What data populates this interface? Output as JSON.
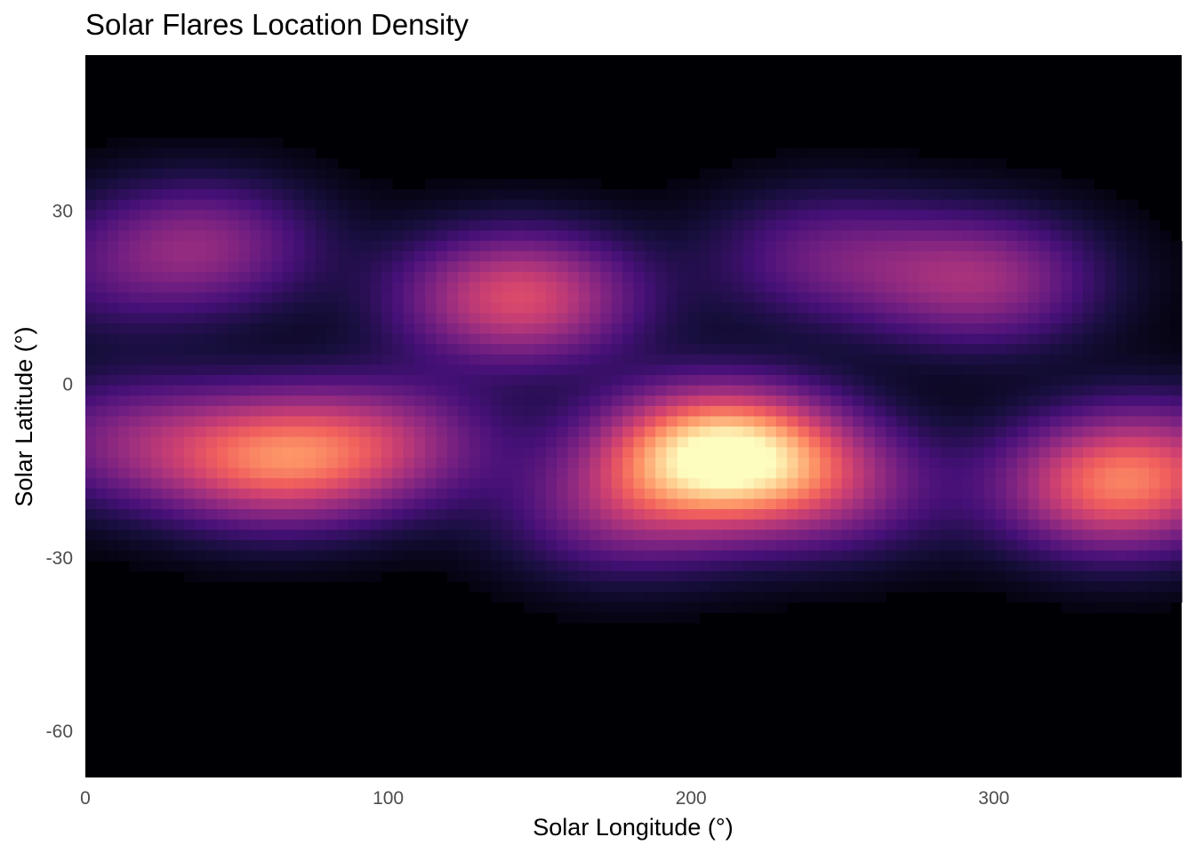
{
  "chart_data": {
    "type": "heatmap",
    "title": "Solar Flares Location Density",
    "xlabel": "Solar Longitude (°)",
    "ylabel": "Solar Latitude (°)",
    "xlim": [
      0,
      362
    ],
    "ylim": [
      -68,
      57
    ],
    "x_ticks": [
      0,
      100,
      200,
      300
    ],
    "y_ticks": [
      -60,
      -30,
      0,
      30
    ],
    "colormap": "magma",
    "colormap_stops": [
      "#000004",
      "#180f3e",
      "#451077",
      "#721f81",
      "#9f2f7f",
      "#cd4071",
      "#f1605d",
      "#fd9567",
      "#feca8d",
      "#fcfdbf"
    ],
    "grid": false,
    "legend": "none",
    "density_peaks": [
      {
        "lon": 210,
        "lat": -12,
        "density": 1.0
      },
      {
        "lon": 63,
        "lat": -13,
        "density": 0.58
      },
      {
        "lon": 143,
        "lat": 15,
        "density": 0.52
      },
      {
        "lon": 340,
        "lat": -18,
        "density": 0.55
      },
      {
        "lon": 38,
        "lat": 24,
        "density": 0.3
      },
      {
        "lon": 295,
        "lat": 18,
        "density": 0.35
      },
      {
        "lon": 15,
        "lat": -10,
        "density": 0.26
      },
      {
        "lon": 100,
        "lat": -10,
        "density": 0.3
      },
      {
        "lon": 245,
        "lat": -18,
        "density": 0.28
      },
      {
        "lon": 178,
        "lat": -22,
        "density": 0.27
      },
      {
        "lon": 245,
        "lat": 22,
        "density": 0.22
      },
      {
        "lon": 355,
        "lat": -12,
        "density": 0.2
      },
      {
        "lon": 5,
        "lat": 18,
        "density": 0.1
      }
    ]
  }
}
